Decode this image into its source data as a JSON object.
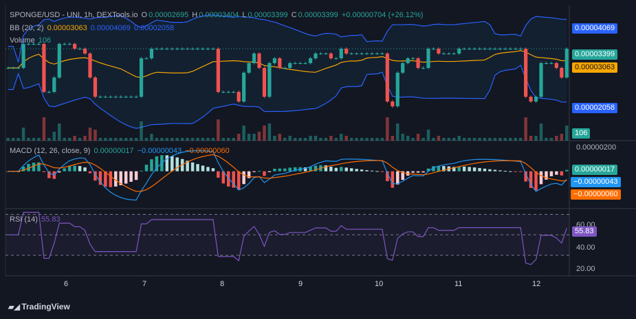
{
  "header": {
    "pair": "SPONGE/USD - UNI, 1h, DEXTools.io",
    "o_label": "O",
    "o": "0.00002695",
    "h_label": "H",
    "h": "0.00003404",
    "l_label": "L",
    "l": "0.00003399",
    "c_label": "C",
    "c": "0.00003399",
    "change": "+0.00000704 (+26.12%)",
    "bb_label": "BB (20, 2)",
    "bb_mid": "0.00003063",
    "bb_upper": "0.00004069",
    "bb_lower": "0.00002058",
    "vol_label": "Volume",
    "vol": "106"
  },
  "macd_header": {
    "label": "MACD (12, 26, close, 9)",
    "hist": "0.00000017",
    "macd": "−0.00000043",
    "signal": "−0.00000060"
  },
  "rsi_header": {
    "label": "RSI (14)",
    "value": "55.83"
  },
  "price_labels": {
    "upper": "0.00004069",
    "close": "0.00003399",
    "mid": "0.00003063",
    "lower": "0.00002058",
    "volume": "106"
  },
  "macd_axis": {
    "top": "0.00000200",
    "hist": "0.00000017",
    "macd": "−0.00000043",
    "signal": "−0.00000060"
  },
  "rsi_axis": {
    "t60": "60.00",
    "value": "55.83",
    "t40": "40.00",
    "t20": "20.00"
  },
  "x_ticks": [
    "6",
    "7",
    "8",
    "9",
    "10",
    "11",
    "12"
  ],
  "brand": "TradingView",
  "colors": {
    "up": "#26a69a",
    "down": "#ef5350",
    "bb": "#2962ff",
    "bb_mid": "#f7a600",
    "macd": "#2196f3",
    "signal": "#ff6d00",
    "rsi": "#7e57c2",
    "bg": "#131722"
  },
  "chart_data": [
    {
      "type": "candlestick",
      "title": "SPONGE/USD - UNI, 1h, DEXTools.io",
      "x_ticks": [
        "6",
        "7",
        "8",
        "9",
        "10",
        "11",
        "12"
      ],
      "ohlc_last": {
        "o": 2.695e-05,
        "h": 3.404e-05,
        "l": 3.399e-05,
        "c": 3.399e-05
      },
      "bollinger": {
        "period": 20,
        "stddev": 2,
        "upper": 4.069e-05,
        "mid": 3.063e-05,
        "lower": 2.058e-05
      },
      "closes": [
        3e-05,
        3e-05,
        3e-05,
        3.5e-05,
        3.5e-05,
        3.5e-05,
        3.5e-05,
        2.5e-05,
        2.5e-05,
        2.8e-05,
        3.5e-05,
        3.5e-05,
        3.5e-05,
        3.4e-05,
        3.4e-05,
        3.3e-05,
        2.8e-05,
        2.4e-05,
        2.4e-05,
        2.4e-05,
        2.4e-05,
        2.4e-05,
        2.4e-05,
        2.4e-05,
        2.4e-05,
        2.4e-05,
        3.2e-05,
        3.2e-05,
        3.4e-05,
        3.4e-05,
        3.4e-05,
        3.4e-05,
        3.4e-05,
        3.4e-05,
        3.4e-05,
        3.4e-05,
        3.4e-05,
        3.4e-05,
        3.4e-05,
        3.4e-05,
        3.4e-05,
        2.5e-05,
        2.5e-05,
        2.5e-05,
        2.5e-05,
        2.3e-05,
        2.9e-05,
        3.1e-05,
        3.3e-05,
        3e-05,
        2.4e-05,
        3.1e-05,
        3.2e-05,
        3e-05,
        3e-05,
        3.1e-05,
        3.1e-05,
        3.1e-05,
        3.1e-05,
        3.2e-05,
        3.3e-05,
        3.3e-05,
        3.3e-05,
        3.2e-05,
        3.2e-05,
        3.4e-05,
        3.3e-05,
        3.3e-05,
        3.3e-05,
        3.3e-05,
        3.3e-05,
        3.3e-05,
        3.3e-05,
        3.3e-05,
        2.3e-05,
        2.2e-05,
        2.9e-05,
        3.1e-05,
        3.2e-05,
        3.2e-05,
        3e-05,
        3e-05,
        3.4e-05,
        3.4e-05,
        3.3e-05,
        3.3e-05,
        3.3e-05,
        3.3e-05,
        3.4e-05,
        3.4e-05,
        3.4e-05,
        3.4e-05,
        3.4e-05,
        3.4e-05,
        3.4e-05,
        3.4e-05,
        3.4e-05,
        3.4e-05,
        3.4e-05,
        3.4e-05,
        3.4e-05,
        2.4e-05,
        2.3e-05,
        2.4e-05,
        3.1e-05,
        3.1e-05,
        3.1e-05,
        3e-05,
        2.8e-05,
        3.4e-05
      ]
    },
    {
      "type": "bar",
      "title": "Volume",
      "last": 106
    },
    {
      "type": "line",
      "title": "MACD (12, 26, close, 9)",
      "ylim": [
        -2.5e-06,
        2e-06
      ],
      "last": {
        "histogram": 1.7e-07,
        "macd": -4.3e-07,
        "signal": -6e-07
      }
    },
    {
      "type": "line",
      "title": "RSI (14)",
      "ylim": [
        10,
        75
      ],
      "bands": [
        30,
        50,
        70
      ],
      "last": 55.83
    }
  ]
}
